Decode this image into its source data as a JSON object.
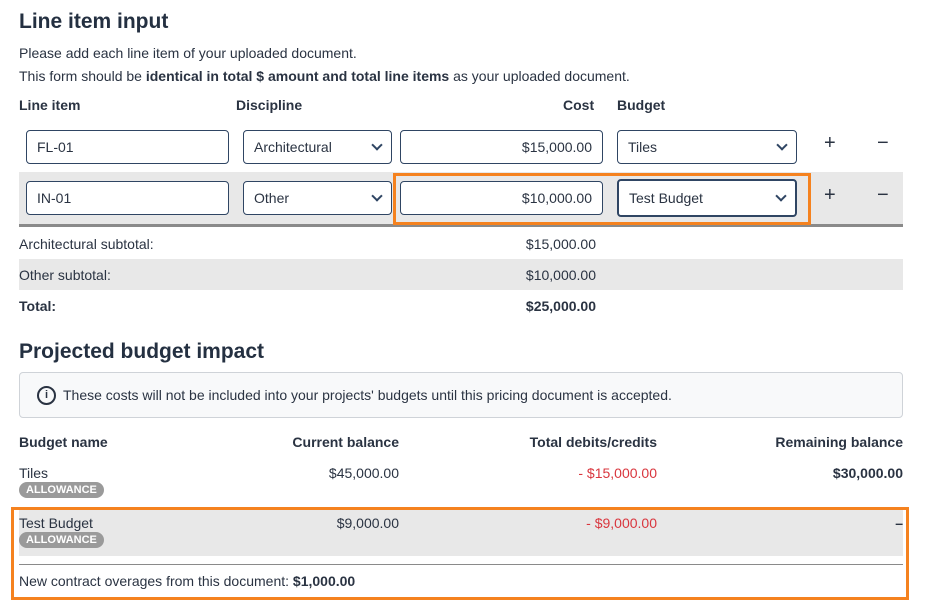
{
  "title": "Line item input",
  "intro1": "Please add each line item of your uploaded document.",
  "intro2_pre": "This form should be ",
  "intro2_bold": "identical in total $ amount and total line items",
  "intro2_post": " as your uploaded document.",
  "columns": {
    "line_item": "Line item",
    "discipline": "Discipline",
    "cost": "Cost",
    "budget": "Budget"
  },
  "rows": [
    {
      "line_item": "FL-01",
      "discipline": "Architectural",
      "cost": "$15,000.00",
      "budget": "Tiles"
    },
    {
      "line_item": "IN-01",
      "discipline": "Other",
      "cost": "$10,000.00",
      "budget": "Test Budget"
    }
  ],
  "add": "+",
  "remove": "−",
  "subtotals": [
    {
      "label": "Architectural subtotal:",
      "value": "$15,000.00"
    },
    {
      "label": "Other subtotal:",
      "value": "$10,000.00"
    }
  ],
  "total": {
    "label": "Total:",
    "value": "$25,000.00"
  },
  "impact": {
    "title": "Projected budget impact",
    "info": "These costs will not be included into your projects' budgets until this pricing document is accepted.",
    "headers": {
      "name": "Budget name",
      "current": "Current balance",
      "debits": "Total debits/credits",
      "remaining": "Remaining balance"
    },
    "rows": [
      {
        "name": "Tiles",
        "badge": "ALLOWANCE",
        "current": "$45,000.00",
        "debits": "- $15,000.00",
        "remaining": "$30,000.00"
      },
      {
        "name": "Test Budget",
        "badge": "ALLOWANCE",
        "current": "$9,000.00",
        "debits": "- $9,000.00",
        "remaining": "–"
      }
    ],
    "overage_label": "New contract overages from this document: ",
    "overage_value": "$1,000.00"
  },
  "colors": {
    "highlight": "#f5821f",
    "negative": "#d9363e"
  }
}
